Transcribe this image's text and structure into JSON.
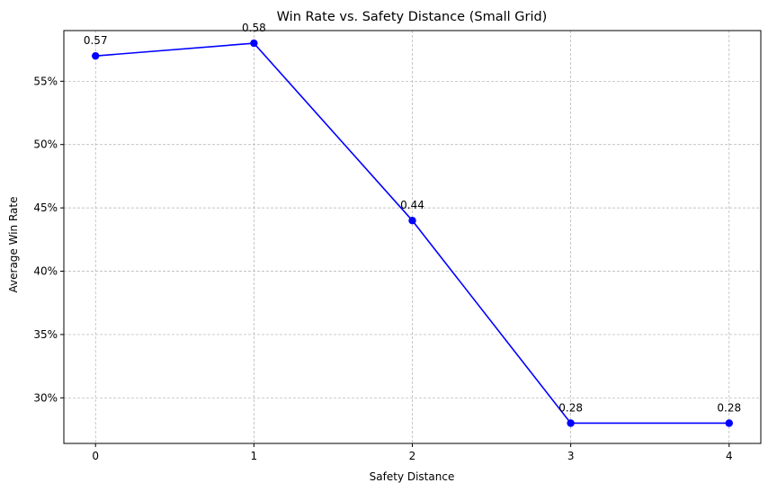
{
  "chart_data": {
    "type": "line",
    "title": "Win Rate vs. Safety Distance (Small Grid)",
    "xlabel": "Safety Distance",
    "ylabel": "Average Win Rate",
    "x": [
      0,
      1,
      2,
      3,
      4
    ],
    "x_ticks": [
      "0",
      "1",
      "2",
      "3",
      "4"
    ],
    "y_ticks": [
      {
        "value": 0.3,
        "label": "30%"
      },
      {
        "value": 0.35,
        "label": "35%"
      },
      {
        "value": 0.4,
        "label": "40%"
      },
      {
        "value": 0.45,
        "label": "45%"
      },
      {
        "value": 0.5,
        "label": "50%"
      },
      {
        "value": 0.55,
        "label": "55%"
      }
    ],
    "xlim": [
      -0.2,
      4.2
    ],
    "ylim": [
      0.264,
      0.59
    ],
    "grid": true,
    "series": [
      {
        "values": [
          0.57,
          0.58,
          0.44,
          0.28,
          0.28
        ],
        "data_labels": [
          "0.57",
          "0.58",
          "0.44",
          "0.28",
          "0.28"
        ],
        "color": "#0000ff",
        "marker": "circle"
      }
    ]
  }
}
